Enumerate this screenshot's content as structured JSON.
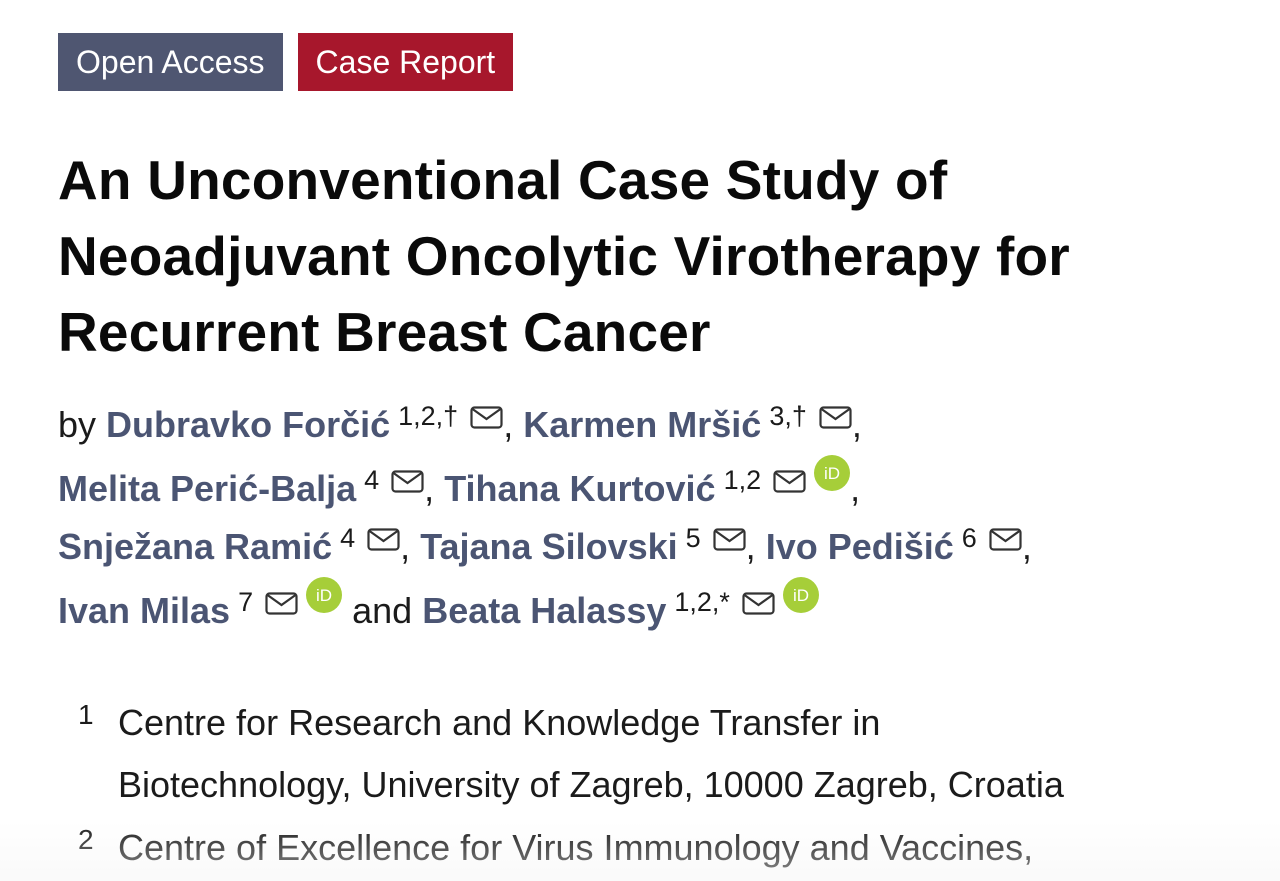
{
  "badges": {
    "open_access": "Open Access",
    "case_report": "Case Report"
  },
  "colors": {
    "open_access_bg": "#4f5671",
    "case_report_bg": "#a7172c",
    "author_link": "#4b5573",
    "orcid_green": "#a6ce39"
  },
  "article": {
    "title": "An Unconventional Case Study of Neoadjuvant Oncolytic Virotherapy for Recurrent Breast Cancer",
    "by_label": "by",
    "and_label": "and"
  },
  "authors": [
    {
      "name": "Dubravko Forčić",
      "aff": "1,2,†",
      "orcid": false
    },
    {
      "name": "Karmen Mršić",
      "aff": "3,†",
      "orcid": false
    },
    {
      "name": "Melita Perić-Balja",
      "aff": "4",
      "orcid": false
    },
    {
      "name": "Tihana Kurtović",
      "aff": "1,2",
      "orcid": true
    },
    {
      "name": "Snježana Ramić",
      "aff": "4",
      "orcid": false
    },
    {
      "name": "Tajana Silovski",
      "aff": "5",
      "orcid": false
    },
    {
      "name": "Ivo Pedišić",
      "aff": "6",
      "orcid": false
    },
    {
      "name": "Ivan Milas",
      "aff": "7",
      "orcid": true
    },
    {
      "name": "Beata Halassy",
      "aff": "1,2,*",
      "orcid": true
    }
  ],
  "icons": {
    "mail": "envelope-icon",
    "orcid": "orcid-icon",
    "orcid_text": "iD"
  },
  "affiliations": [
    {
      "num": "1",
      "lines": [
        "Centre for Research and Knowledge Transfer in",
        "Biotechnology, University of Zagreb, 10000 Zagreb, Croatia"
      ]
    },
    {
      "num": "2",
      "lines": [
        "Centre of Excellence for Virus Immunology and Vaccines,"
      ]
    }
  ]
}
